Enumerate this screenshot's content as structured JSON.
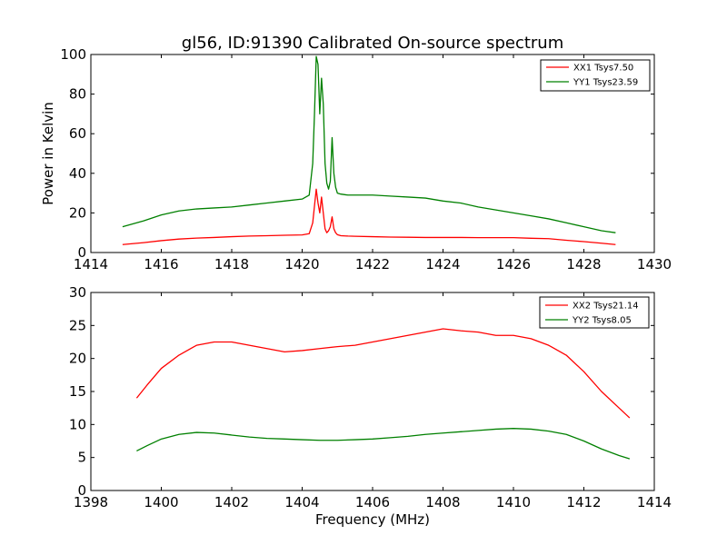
{
  "chart_data": [
    {
      "type": "line",
      "title": "gl56, ID:91390 Calibrated On-source spectrum",
      "xlabel": "",
      "ylabel": "Power in Kelvin",
      "xlim": [
        1414,
        1430
      ],
      "ylim": [
        0,
        100
      ],
      "xticks": [
        1414,
        1416,
        1418,
        1420,
        1422,
        1424,
        1426,
        1428,
        1430
      ],
      "yticks": [
        0,
        20,
        40,
        60,
        80,
        100
      ],
      "grid": false,
      "legend_position": "top-right",
      "series": [
        {
          "name": "XX1 Tsys7.50",
          "color": "#ff0000",
          "x": [
            1414.9,
            1415.5,
            1416.0,
            1416.5,
            1417.0,
            1417.5,
            1418.0,
            1418.5,
            1419.0,
            1419.5,
            1420.0,
            1420.2,
            1420.3,
            1420.4,
            1420.45,
            1420.5,
            1420.55,
            1420.6,
            1420.65,
            1420.7,
            1420.75,
            1420.8,
            1420.85,
            1420.9,
            1420.95,
            1421.0,
            1421.1,
            1421.3,
            1421.5,
            1422.0,
            1422.5,
            1423.0,
            1423.5,
            1424.0,
            1424.5,
            1425.0,
            1425.5,
            1426.0,
            1426.5,
            1427.0,
            1427.5,
            1428.0,
            1428.5,
            1428.9
          ],
          "y": [
            4.0,
            5.0,
            6.0,
            6.8,
            7.3,
            7.6,
            8.0,
            8.3,
            8.5,
            8.7,
            8.9,
            9.5,
            15.0,
            32.0,
            25.0,
            20.0,
            28.0,
            20.0,
            12.0,
            10.0,
            11.0,
            13.0,
            18.0,
            12.0,
            10.0,
            9.0,
            8.5,
            8.3,
            8.2,
            8.0,
            7.8,
            7.7,
            7.6,
            7.6,
            7.6,
            7.5,
            7.5,
            7.5,
            7.2,
            7.0,
            6.2,
            5.5,
            4.7,
            4.0
          ]
        },
        {
          "name": "YY1 Tsys23.59",
          "color": "#008000",
          "x": [
            1414.9,
            1415.5,
            1416.0,
            1416.5,
            1417.0,
            1417.5,
            1418.0,
            1418.5,
            1419.0,
            1419.5,
            1420.0,
            1420.2,
            1420.3,
            1420.35,
            1420.4,
            1420.45,
            1420.5,
            1420.55,
            1420.6,
            1420.65,
            1420.7,
            1420.75,
            1420.8,
            1420.85,
            1420.9,
            1420.95,
            1421.0,
            1421.1,
            1421.3,
            1421.5,
            1422.0,
            1422.5,
            1423.0,
            1423.5,
            1424.0,
            1424.5,
            1425.0,
            1425.5,
            1426.0,
            1426.5,
            1427.0,
            1427.5,
            1428.0,
            1428.5,
            1428.9
          ],
          "y": [
            13.0,
            16.0,
            19.0,
            21.0,
            22.0,
            22.5,
            23.0,
            24.0,
            25.0,
            26.0,
            27.0,
            29.0,
            45.0,
            70.0,
            99.0,
            95.0,
            70.0,
            88.0,
            75.0,
            45.0,
            35.0,
            32.0,
            36.0,
            58.0,
            40.0,
            33.0,
            30.0,
            29.5,
            29.0,
            29.0,
            29.0,
            28.5,
            28.0,
            27.5,
            26.0,
            25.0,
            23.0,
            21.5,
            20.0,
            18.5,
            17.0,
            15.0,
            13.0,
            11.0,
            10.0
          ]
        }
      ]
    },
    {
      "type": "line",
      "title": "",
      "xlabel": "Frequency (MHz)",
      "ylabel": "",
      "xlim": [
        1398,
        1414
      ],
      "ylim": [
        0,
        30
      ],
      "xticks": [
        1398,
        1400,
        1402,
        1404,
        1406,
        1408,
        1410,
        1412,
        1414
      ],
      "yticks": [
        0,
        5,
        10,
        15,
        20,
        25,
        30
      ],
      "grid": false,
      "legend_position": "top-right",
      "series": [
        {
          "name": "XX2 Tsys21.14",
          "color": "#ff0000",
          "x": [
            1399.3,
            1399.6,
            1400.0,
            1400.5,
            1401.0,
            1401.5,
            1402.0,
            1402.5,
            1403.0,
            1403.5,
            1404.0,
            1404.5,
            1405.0,
            1405.5,
            1406.0,
            1406.5,
            1407.0,
            1407.5,
            1408.0,
            1408.5,
            1409.0,
            1409.5,
            1410.0,
            1410.5,
            1411.0,
            1411.5,
            1412.0,
            1412.5,
            1413.0,
            1413.3
          ],
          "y": [
            14.0,
            16.0,
            18.5,
            20.5,
            22.0,
            22.5,
            22.5,
            22.0,
            21.5,
            21.0,
            21.2,
            21.5,
            21.8,
            22.0,
            22.5,
            23.0,
            23.5,
            24.0,
            24.5,
            24.2,
            24.0,
            23.5,
            23.5,
            23.0,
            22.0,
            20.5,
            18.0,
            15.0,
            12.5,
            11.0
          ]
        },
        {
          "name": "YY2 Tsys8.05",
          "color": "#008000",
          "x": [
            1399.3,
            1399.6,
            1400.0,
            1400.5,
            1401.0,
            1401.5,
            1402.0,
            1402.5,
            1403.0,
            1403.5,
            1404.0,
            1404.5,
            1405.0,
            1405.5,
            1406.0,
            1406.5,
            1407.0,
            1407.5,
            1408.0,
            1408.5,
            1409.0,
            1409.5,
            1410.0,
            1410.5,
            1411.0,
            1411.5,
            1412.0,
            1412.5,
            1413.0,
            1413.3
          ],
          "y": [
            6.0,
            6.8,
            7.8,
            8.5,
            8.8,
            8.7,
            8.4,
            8.1,
            7.9,
            7.8,
            7.7,
            7.6,
            7.6,
            7.7,
            7.8,
            8.0,
            8.2,
            8.5,
            8.7,
            8.9,
            9.1,
            9.3,
            9.4,
            9.3,
            9.0,
            8.5,
            7.5,
            6.3,
            5.3,
            4.8
          ]
        }
      ]
    }
  ]
}
